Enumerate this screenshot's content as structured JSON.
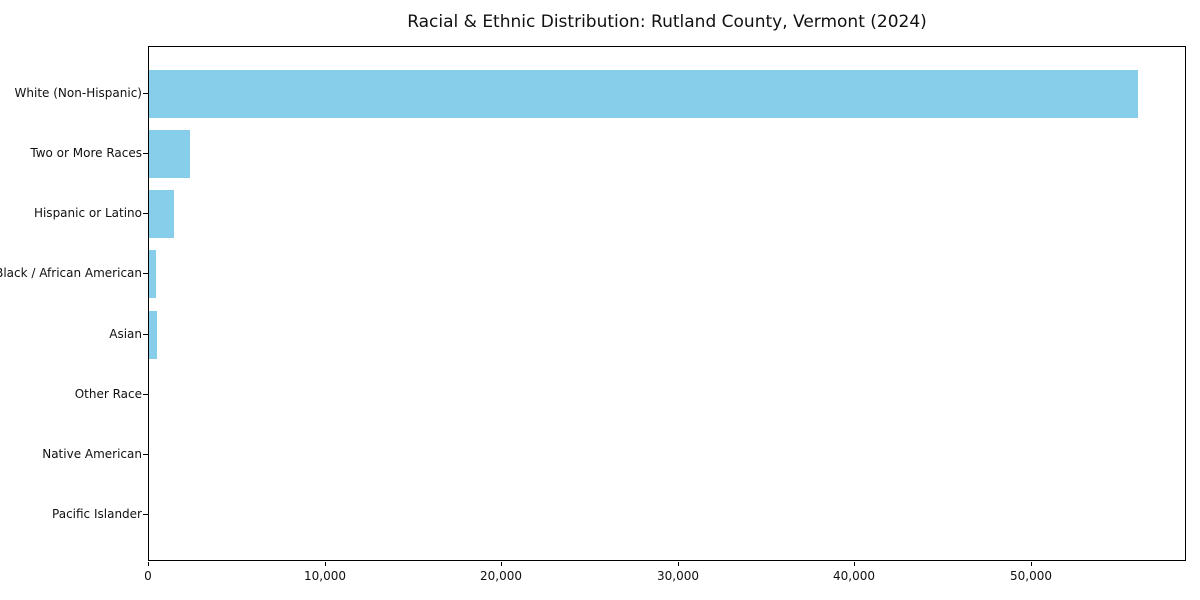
{
  "chart_data": {
    "type": "bar",
    "orientation": "horizontal",
    "title": "Racial & Ethnic Distribution: Rutland County, Vermont (2024)",
    "categories": [
      "White (Non-Hispanic)",
      "Two or More Races",
      "Hispanic or Latino",
      "Black / African American",
      "Asian",
      "Other Race",
      "Native American",
      "Pacific Islander"
    ],
    "values": [
      56000,
      2350,
      1400,
      420,
      460,
      0,
      0,
      0
    ],
    "xlabel": "",
    "ylabel": "",
    "xlim": [
      0,
      58800
    ],
    "x_ticks": [
      {
        "value": 0,
        "label": "0"
      },
      {
        "value": 10000,
        "label": "10,000"
      },
      {
        "value": 20000,
        "label": "20,000"
      },
      {
        "value": 30000,
        "label": "30,000"
      },
      {
        "value": 40000,
        "label": "40,000"
      },
      {
        "value": 50000,
        "label": "50,000"
      }
    ],
    "grid": false,
    "legend": null,
    "bar_color": "#87CEEB",
    "spine_color": "#000000",
    "text_color": "#111111",
    "background_color": "#ffffff"
  }
}
